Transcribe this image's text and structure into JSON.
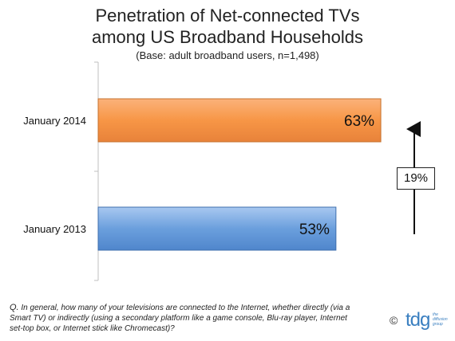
{
  "chart_data": {
    "type": "bar",
    "orientation": "horizontal",
    "title": "Penetration of Net-connected TVs among US Broadband Households",
    "title_lines": [
      "Penetration of Net-connected TVs",
      "among US Broadband Households"
    ],
    "subtitle": "(Base: adult broadband users, n=1,498)",
    "categories": [
      "January 2014",
      "January 2013"
    ],
    "values": [
      63,
      53
    ],
    "value_labels": [
      "63%",
      "53%"
    ],
    "xlim": [
      0,
      100
    ],
    "colors": [
      "#f79646",
      "#6b9fdd"
    ],
    "annotation": {
      "text": "19%",
      "direction": "up"
    }
  },
  "footer": {
    "question_prefix": "Q.",
    "question_text": "In general, how many of your televisions are connected to the Internet, whether directly (via a Smart TV) or indirectly (using a secondary platform like a game console, Blu-ray player, Internet set-top box, or Internet stick like Chromecast)?",
    "copyright": "©",
    "logo_text": "tdg",
    "logo_subtext": "the diffusion group"
  }
}
